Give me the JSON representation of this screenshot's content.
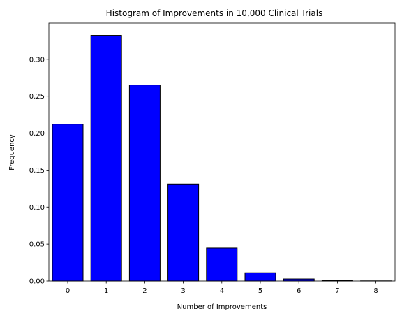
{
  "chart_data": {
    "type": "bar",
    "title": "Histogram of Improvements in 10,000 Clinical Trials",
    "xlabel": "Number of Improvements",
    "ylabel": "Frequency",
    "categories": [
      "0",
      "1",
      "2",
      "3",
      "4",
      "5",
      "6",
      "7",
      "8"
    ],
    "values": [
      0.2122,
      0.3324,
      0.2652,
      0.1312,
      0.0445,
      0.0111,
      0.0028,
      0.0009,
      0.0002
    ],
    "ylim": [
      0,
      0.349
    ],
    "yticks": [
      0.0,
      0.05,
      0.1,
      0.15,
      0.2,
      0.25,
      0.3
    ],
    "ytick_labels": [
      "0.00",
      "0.05",
      "0.10",
      "0.15",
      "0.20",
      "0.25",
      "0.30"
    ],
    "bar_color": "#0000ff",
    "edge_color": "#000000",
    "grid": false,
    "legend": "none"
  }
}
